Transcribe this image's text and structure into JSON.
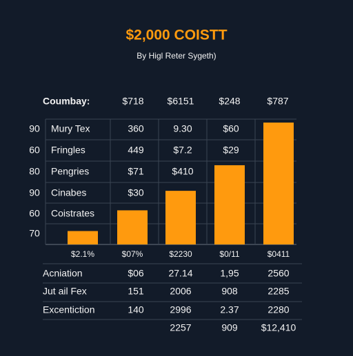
{
  "title": "$2,000 COISTT",
  "subtitle": "By Higl Reter Sygeth)",
  "header": [
    "Coumbay:",
    "$718",
    "$6151",
    "$248",
    "$787"
  ],
  "rows": [
    {
      "index": "90",
      "label": "Mury Tex",
      "cells": [
        "360",
        "9.30",
        "$60"
      ]
    },
    {
      "index": "60",
      "label": "Fringles",
      "cells": [
        "449",
        "$7.2",
        "$29"
      ]
    },
    {
      "index": "80",
      "label": "Pengries",
      "cells": [
        "$71",
        "$410"
      ]
    },
    {
      "index": "90",
      "label": "Cinabes",
      "cells": [
        "$30"
      ]
    },
    {
      "index": "60",
      "label": "Coistrates",
      "cells": []
    },
    {
      "index": "70"
    }
  ],
  "bars": {
    "color": "#ff9a0e",
    "labels": [
      "$2.1%",
      "$07%",
      "$2230",
      "$0/11",
      "$0411"
    ],
    "values": [
      11,
      28,
      44,
      65,
      100
    ]
  },
  "lower_rows": [
    {
      "label": "Acniation",
      "cells": [
        "$06",
        "27.14",
        "1,95",
        "2560"
      ]
    },
    {
      "label": "Jut ail Fex",
      "cells": [
        "151",
        "2006",
        "908",
        "2285"
      ]
    },
    {
      "label": "Excentiction",
      "cells": [
        "140",
        "2996",
        "2.37",
        "2280"
      ]
    }
  ],
  "totals": [
    "2257",
    "909",
    "$12,410"
  ]
}
